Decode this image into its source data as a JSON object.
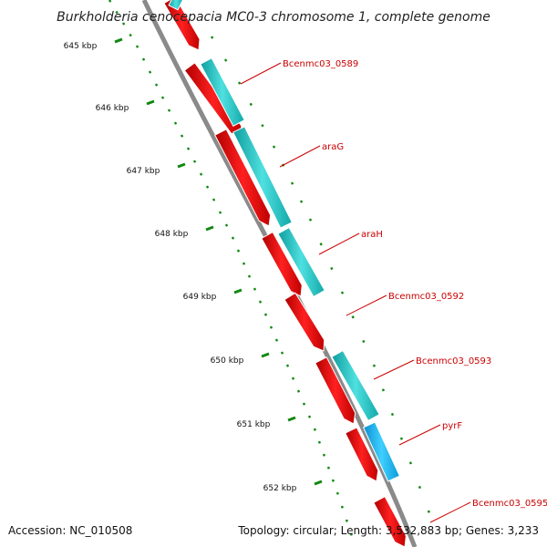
{
  "title": "Burkholderia cenocepacia MC0-3 chromosome 1, complete genome",
  "footer": {
    "accession": "Accession: NC_010508",
    "summary": "Topology: circular; Length: 3,532,883 bp; Genes: 3,233"
  },
  "colors": {
    "backbone": "#8a8a8a",
    "forward_strand": "#ff0000",
    "reverse_strand": "#1ac6c6",
    "highlight_strand": "#18b4f2",
    "tick": "#118811",
    "label_line": "#cc0000"
  },
  "ticks": [
    "645 kbp",
    "646 kbp",
    "647 kbp",
    "648 kbp",
    "649 kbp",
    "650 kbp",
    "651 kbp",
    "652 kbp"
  ],
  "genes": [
    {
      "label": "Bcenmc03_0589"
    },
    {
      "label": "araG"
    },
    {
      "label": "araH"
    },
    {
      "label": "Bcenmc03_0592"
    },
    {
      "label": "Bcenmc03_0593"
    },
    {
      "label": "pyrF"
    },
    {
      "label": "Bcenmc03_0595"
    }
  ]
}
